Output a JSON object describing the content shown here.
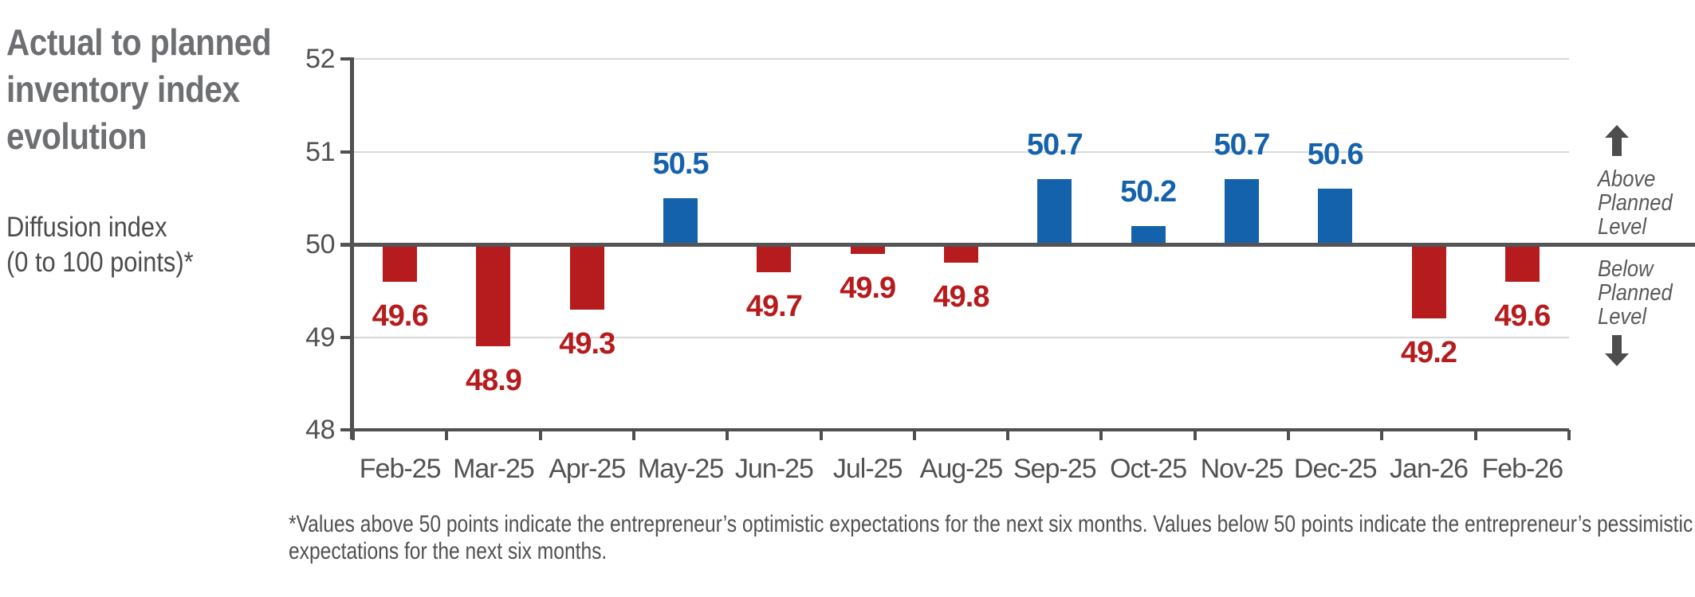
{
  "title_lines": [
    "Actual to planned",
    "inventory index",
    "evolution"
  ],
  "subtitle_lines": [
    "Diffusion index",
    "(0 to 100 points)*"
  ],
  "footnote_lines": [
    "*Values above 50 points indicate the entrepreneur’s optimistic expectations for the next six months. Values below 50 points indicate the entrepreneur’s pessimistic",
    "expectations for the next six months."
  ],
  "annotations": {
    "above_lines": [
      "Above",
      "Planned",
      "Level"
    ],
    "below_lines": [
      "Below",
      "Planned",
      "Level"
    ],
    "up_arrow_icon": "up-arrow",
    "down_arrow_icon": "down-arrow"
  },
  "colors": {
    "above_bar": "#1562AC",
    "below_bar": "#B61C1E",
    "axis": "#4F4F51",
    "zero_line": "#545456",
    "gridline": "#D8D8D8",
    "tick": "#4F4F51",
    "axis_text": "#525255",
    "arrow": "#4D4D4D"
  },
  "chart_data": {
    "type": "bar",
    "title": "Actual to planned inventory index evolution",
    "ylabel": "Diffusion index (0 to 100 points)*",
    "xlabel": "",
    "categories": [
      "Feb-25",
      "Mar-25",
      "Apr-25",
      "May-25",
      "Jun-25",
      "Jul-25",
      "Aug-25",
      "Sep-25",
      "Oct-25",
      "Nov-25",
      "Dec-25",
      "Jan-26",
      "Feb-26"
    ],
    "values": [
      49.6,
      48.9,
      49.3,
      50.5,
      49.7,
      49.9,
      49.8,
      50.7,
      50.2,
      50.7,
      50.6,
      49.2,
      49.6
    ],
    "baseline": 50,
    "ylim": [
      48,
      52
    ],
    "yticks": [
      48,
      49,
      50,
      51,
      52
    ],
    "grid": "horizontal",
    "legend_position": "none",
    "value_labels": true,
    "above_label": "Above Planned Level",
    "below_label": "Below Planned Level"
  }
}
